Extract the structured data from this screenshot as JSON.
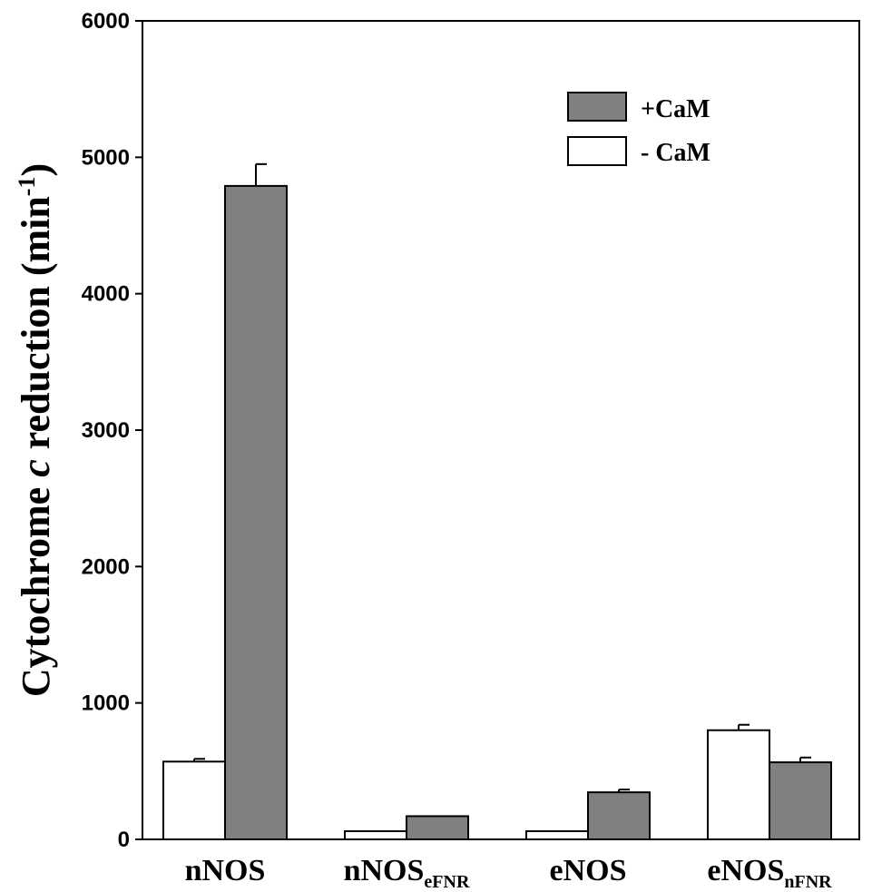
{
  "chart_data": {
    "type": "bar",
    "title": "",
    "xlabel": "",
    "ylabel": {
      "main": "Cytochrome ",
      "italic": "c",
      "rest": " reduction (min",
      "sup": "-1",
      "close": ")"
    },
    "ylim": [
      0,
      6000
    ],
    "yticks": [
      "0",
      "1000",
      "2000",
      "3000",
      "4000",
      "5000",
      "6000"
    ],
    "categories": [
      {
        "base": "nNOS",
        "sub": ""
      },
      {
        "base": "nNOS",
        "sub": "eFNR"
      },
      {
        "base": "eNOS",
        "sub": ""
      },
      {
        "base": "eNOS",
        "sub": "nFNR"
      }
    ],
    "series": [
      {
        "name": "- CaM",
        "color": "#ffffff",
        "values": [
          570,
          60,
          60,
          800
        ],
        "errors": [
          20,
          0,
          0,
          40
        ]
      },
      {
        "name": "+CaM",
        "color": "#808080",
        "values": [
          4790,
          170,
          345,
          565
        ],
        "errors": [
          160,
          0,
          20,
          35
        ]
      }
    ],
    "legend": {
      "placement": "top-right",
      "entries": [
        "+CaM",
        "- CaM"
      ]
    },
    "grid": false
  }
}
